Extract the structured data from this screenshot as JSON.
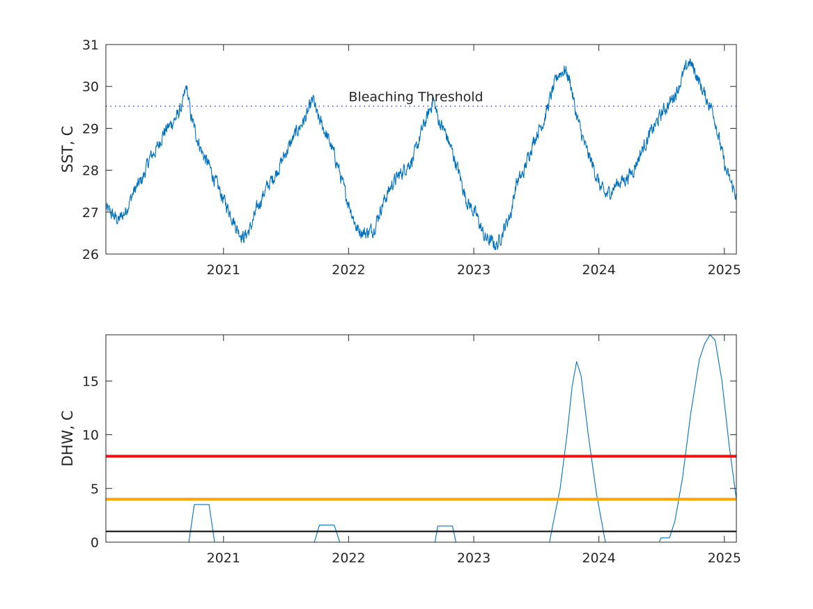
{
  "chart_data": [
    {
      "type": "line",
      "ylabel": "SST, C",
      "xlim": [
        "2020-01-24",
        "2025-02-05"
      ],
      "ylim": [
        26,
        31
      ],
      "yticks": [
        26,
        27,
        28,
        29,
        30,
        31
      ],
      "xticks": [
        "2021",
        "2022",
        "2023",
        "2024",
        "2025"
      ],
      "grid": false,
      "series": [
        {
          "color": "#0072BD",
          "points": [
            [
              "2020-01-24",
              27.1
            ],
            [
              "2020-02-10",
              26.95
            ],
            [
              "2020-03-01",
              26.8
            ],
            [
              "2020-03-20",
              27.0
            ],
            [
              "2020-04-15",
              27.5
            ],
            [
              "2020-05-10",
              27.8
            ],
            [
              "2020-06-01",
              28.3
            ],
            [
              "2020-06-20",
              28.5
            ],
            [
              "2020-07-10",
              28.9
            ],
            [
              "2020-08-01",
              29.1
            ],
            [
              "2020-08-20",
              29.3
            ],
            [
              "2020-09-05",
              29.6
            ],
            [
              "2020-09-15",
              30.0
            ],
            [
              "2020-09-28",
              29.3
            ],
            [
              "2020-10-15",
              28.8
            ],
            [
              "2020-11-01",
              28.4
            ],
            [
              "2020-11-20",
              28.1
            ],
            [
              "2020-12-10",
              27.7
            ],
            [
              "2021-01-01",
              27.3
            ],
            [
              "2021-01-20",
              27.0
            ],
            [
              "2021-02-10",
              26.6
            ],
            [
              "2021-03-01",
              26.4
            ],
            [
              "2021-03-20",
              26.6
            ],
            [
              "2021-04-10",
              27.1
            ],
            [
              "2021-05-01",
              27.5
            ],
            [
              "2021-06-01",
              27.9
            ],
            [
              "2021-07-01",
              28.4
            ],
            [
              "2021-08-01",
              28.9
            ],
            [
              "2021-09-01",
              29.3
            ],
            [
              "2021-09-20",
              29.7
            ],
            [
              "2021-10-01",
              29.3
            ],
            [
              "2021-10-20",
              29.0
            ],
            [
              "2021-11-10",
              28.6
            ],
            [
              "2021-12-01",
              28.1
            ],
            [
              "2021-12-20",
              27.5
            ],
            [
              "2022-01-10",
              27.0
            ],
            [
              "2022-01-25",
              26.6
            ],
            [
              "2022-02-20",
              26.5
            ],
            [
              "2022-03-15",
              26.6
            ],
            [
              "2022-04-10",
              27.2
            ],
            [
              "2022-05-10",
              27.7
            ],
            [
              "2022-06-10",
              28.0
            ],
            [
              "2022-07-10",
              28.3
            ],
            [
              "2022-08-05",
              29.0
            ],
            [
              "2022-08-20",
              29.3
            ],
            [
              "2022-09-05",
              29.7
            ],
            [
              "2022-09-20",
              29.2
            ],
            [
              "2022-10-10",
              28.9
            ],
            [
              "2022-11-01",
              28.4
            ],
            [
              "2022-11-20",
              27.9
            ],
            [
              "2022-12-10",
              27.3
            ],
            [
              "2023-01-10",
              26.9
            ],
            [
              "2023-02-01",
              26.4
            ],
            [
              "2023-02-20",
              26.3
            ],
            [
              "2023-03-10",
              26.2
            ],
            [
              "2023-03-30",
              26.6
            ],
            [
              "2023-04-20",
              27.0
            ],
            [
              "2023-05-05",
              27.7
            ],
            [
              "2023-05-25",
              27.9
            ],
            [
              "2023-06-15",
              28.5
            ],
            [
              "2023-07-05",
              28.9
            ],
            [
              "2023-07-25",
              29.2
            ],
            [
              "2023-08-15",
              29.8
            ],
            [
              "2023-09-05",
              30.3
            ],
            [
              "2023-09-25",
              30.4
            ],
            [
              "2023-10-10",
              30.1
            ],
            [
              "2023-10-25",
              29.4
            ],
            [
              "2023-11-10",
              28.9
            ],
            [
              "2023-11-25",
              28.5
            ],
            [
              "2023-12-15",
              28.1
            ],
            [
              "2024-01-05",
              27.6
            ],
            [
              "2024-01-20",
              27.4
            ],
            [
              "2024-02-05",
              27.5
            ],
            [
              "2024-02-25",
              27.7
            ],
            [
              "2024-03-20",
              27.8
            ],
            [
              "2024-04-10",
              28.0
            ],
            [
              "2024-05-01",
              28.4
            ],
            [
              "2024-05-25",
              28.8
            ],
            [
              "2024-06-15",
              29.1
            ],
            [
              "2024-07-05",
              29.4
            ],
            [
              "2024-07-25",
              29.6
            ],
            [
              "2024-08-15",
              29.9
            ],
            [
              "2024-09-05",
              30.3
            ],
            [
              "2024-09-20",
              30.6
            ],
            [
              "2024-10-05",
              30.4
            ],
            [
              "2024-10-25",
              30.0
            ],
            [
              "2024-11-10",
              29.7
            ],
            [
              "2024-11-30",
              29.4
            ],
            [
              "2024-12-15",
              28.8
            ],
            [
              "2025-01-05",
              28.0
            ],
            [
              "2025-01-20",
              27.7
            ],
            [
              "2025-02-05",
              27.4
            ]
          ]
        }
      ],
      "reference_lines": [
        {
          "y": 29.53,
          "style": "dotted",
          "color": "#3C3CCF",
          "label": "Bleaching Threshold"
        }
      ]
    },
    {
      "type": "line",
      "ylabel": "DHW, C",
      "xlim": [
        "2020-01-24",
        "2025-02-05"
      ],
      "ylim": [
        0,
        19.3
      ],
      "yticks": [
        0,
        5,
        10,
        15
      ],
      "xticks": [
        "2021",
        "2022",
        "2023",
        "2024",
        "2025"
      ],
      "grid": false,
      "series": [
        {
          "color": "#0072BD",
          "points": [
            [
              "2020-01-24",
              0
            ],
            [
              "2020-09-22",
              0
            ],
            [
              "2020-10-08",
              3.5
            ],
            [
              "2020-11-20",
              3.5
            ],
            [
              "2020-12-06",
              0
            ],
            [
              "2021-09-23",
              0
            ],
            [
              "2021-10-08",
              1.6
            ],
            [
              "2021-11-20",
              1.6
            ],
            [
              "2021-12-06",
              0
            ],
            [
              "2022-09-10",
              0
            ],
            [
              "2022-09-18",
              1.5
            ],
            [
              "2022-10-31",
              1.5
            ],
            [
              "2022-11-10",
              0
            ],
            [
              "2023-08-10",
              0
            ],
            [
              "2023-08-22",
              2.0
            ],
            [
              "2023-09-10",
              5.0
            ],
            [
              "2023-09-30",
              10.0
            ],
            [
              "2023-10-15",
              14.5
            ],
            [
              "2023-10-28",
              16.8
            ],
            [
              "2023-11-10",
              15.5
            ],
            [
              "2023-12-01",
              10.0
            ],
            [
              "2023-12-25",
              4.5
            ],
            [
              "2024-01-20",
              0
            ],
            [
              "2024-06-25",
              0
            ],
            [
              "2024-06-30",
              0.4
            ],
            [
              "2024-07-25",
              0.4
            ],
            [
              "2024-08-10",
              2.0
            ],
            [
              "2024-09-01",
              6.0
            ],
            [
              "2024-09-25",
              12.0
            ],
            [
              "2024-10-20",
              17.0
            ],
            [
              "2024-11-05",
              18.5
            ],
            [
              "2024-11-20",
              19.3
            ],
            [
              "2024-12-05",
              18.8
            ],
            [
              "2024-12-25",
              15.0
            ],
            [
              "2025-01-15",
              9.0
            ],
            [
              "2025-02-05",
              4.0
            ]
          ]
        }
      ],
      "reference_lines": [
        {
          "y": 8,
          "style": "solid",
          "color": "#EE1111"
        },
        {
          "y": 4,
          "style": "solid",
          "color": "#FFA500"
        },
        {
          "y": 1,
          "style": "solid",
          "color": "#000000"
        }
      ]
    }
  ]
}
